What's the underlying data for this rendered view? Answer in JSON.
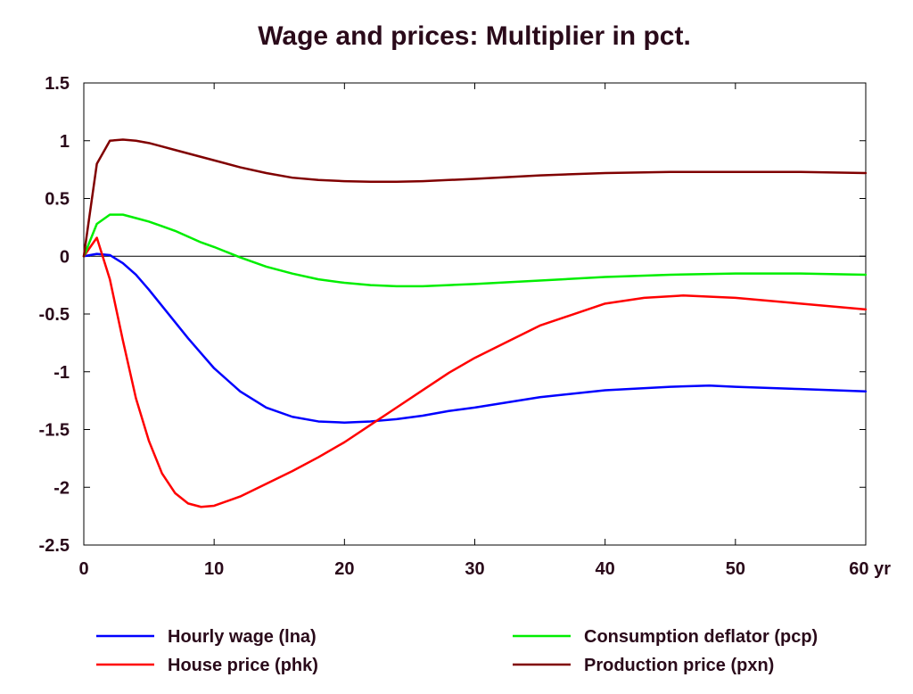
{
  "chart_data": {
    "type": "line",
    "title": "Wage and prices: Multiplier in pct.",
    "xlabel": "",
    "ylabel": "",
    "x_unit_label": "yr",
    "xlim": [
      0,
      60
    ],
    "ylim": [
      -2.5,
      1.5
    ],
    "x_ticks": [
      0,
      10,
      20,
      30,
      40,
      50,
      60
    ],
    "x_tick_labels": [
      "0",
      "10",
      "20",
      "30",
      "40",
      "50",
      "60 yr"
    ],
    "y_ticks": [
      1.5,
      1,
      0.5,
      0,
      -0.5,
      -1,
      -1.5,
      -2,
      -2.5
    ],
    "y_tick_labels": [
      "1.5",
      "1",
      "0.5",
      "0",
      "-0.5",
      "-1",
      "-1.5",
      "-2",
      "-2.5"
    ],
    "grid": false,
    "zero_line": true,
    "legend_position": "bottom",
    "series": [
      {
        "name": "Hourly wage (lna)",
        "color": "#0000ff",
        "x": [
          0,
          1,
          2,
          3,
          4,
          5,
          6,
          7,
          8,
          9,
          10,
          12,
          14,
          16,
          18,
          20,
          22,
          24,
          26,
          28,
          30,
          35,
          40,
          45,
          48,
          50,
          55,
          60
        ],
        "y": [
          0,
          0.02,
          0.01,
          -0.06,
          -0.16,
          -0.29,
          -0.43,
          -0.57,
          -0.71,
          -0.84,
          -0.97,
          -1.17,
          -1.31,
          -1.39,
          -1.43,
          -1.44,
          -1.43,
          -1.41,
          -1.38,
          -1.34,
          -1.31,
          -1.22,
          -1.16,
          -1.13,
          -1.12,
          -1.13,
          -1.15,
          -1.17
        ]
      },
      {
        "name": "House price (phk)",
        "color": "#ff0000",
        "x": [
          0,
          1,
          2,
          3,
          4,
          5,
          6,
          7,
          8,
          9,
          10,
          12,
          14,
          16,
          18,
          20,
          22,
          24,
          26,
          28,
          30,
          35,
          40,
          43,
          46,
          50,
          55,
          60
        ],
        "y": [
          0,
          0.16,
          -0.2,
          -0.73,
          -1.23,
          -1.6,
          -1.88,
          -2.05,
          -2.14,
          -2.17,
          -2.16,
          -2.08,
          -1.97,
          -1.86,
          -1.74,
          -1.61,
          -1.46,
          -1.31,
          -1.16,
          -1.01,
          -0.88,
          -0.6,
          -0.41,
          -0.36,
          -0.34,
          -0.36,
          -0.41,
          -0.46
        ]
      },
      {
        "name": "Consumption deflator (pcp)",
        "color": "#00ee00",
        "x": [
          0,
          1,
          2,
          3,
          4,
          5,
          6,
          7,
          8,
          9,
          10,
          12,
          14,
          16,
          18,
          20,
          22,
          24,
          26,
          28,
          30,
          35,
          40,
          45,
          50,
          55,
          60
        ],
        "y": [
          0,
          0.28,
          0.36,
          0.36,
          0.33,
          0.3,
          0.26,
          0.22,
          0.17,
          0.12,
          0.08,
          -0.01,
          -0.09,
          -0.15,
          -0.2,
          -0.23,
          -0.25,
          -0.26,
          -0.26,
          -0.25,
          -0.24,
          -0.21,
          -0.18,
          -0.16,
          -0.15,
          -0.15,
          -0.16
        ]
      },
      {
        "name": "Production price (pxn)",
        "color": "#800000",
        "x": [
          0,
          1,
          2,
          3,
          4,
          5,
          6,
          7,
          8,
          9,
          10,
          12,
          14,
          16,
          18,
          20,
          22,
          24,
          26,
          28,
          30,
          35,
          40,
          45,
          50,
          55,
          60
        ],
        "y": [
          0,
          0.8,
          1.0,
          1.01,
          1.0,
          0.98,
          0.95,
          0.92,
          0.89,
          0.86,
          0.83,
          0.77,
          0.72,
          0.68,
          0.66,
          0.65,
          0.645,
          0.645,
          0.65,
          0.66,
          0.67,
          0.7,
          0.72,
          0.73,
          0.73,
          0.73,
          0.72
        ]
      }
    ]
  }
}
